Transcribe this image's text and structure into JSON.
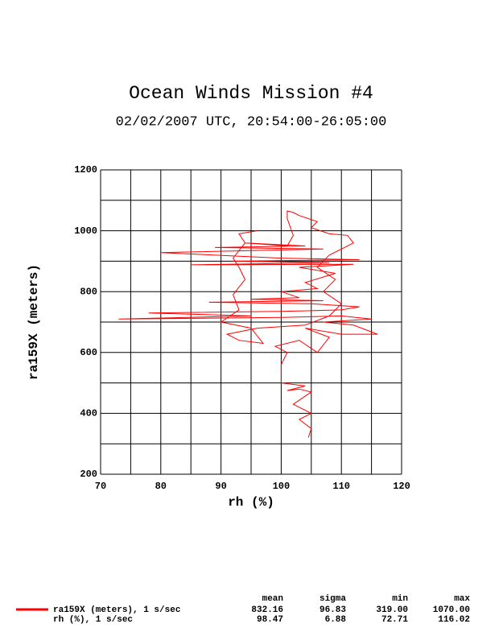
{
  "chart_data": {
    "type": "line",
    "title": "Ocean Winds Mission #4",
    "subtitle": "02/02/2007  UTC, 20:54:00-26:05:00",
    "x_label": "rh (%)",
    "y_label": "ra159X (meters)",
    "xlim": [
      70,
      120
    ],
    "ylim": [
      200,
      1200
    ],
    "xticks": [
      70,
      80,
      90,
      100,
      110,
      120
    ],
    "yticks": [
      200,
      400,
      600,
      800,
      1000,
      1200
    ],
    "x_minor_grid": [
      75,
      85,
      95,
      105,
      115
    ],
    "y_minor_grid": [
      300,
      500,
      700,
      900,
      1100
    ],
    "grid": true,
    "series": [
      {
        "name": "ra159X (meters), 1 s/sec",
        "color": "#ff0000",
        "x": [
          104.5,
          105,
          103,
          105,
          102,
          105,
          103,
          101,
          104,
          100,
          100,
          101,
          99,
          103,
          106,
          108,
          104,
          110,
          116,
          112,
          107,
          115,
          110,
          100,
          73,
          95,
          78,
          100,
          110,
          113,
          105,
          88,
          107,
          95,
          103,
          100,
          106,
          104,
          109,
          103,
          112,
          85,
          108,
          92,
          113,
          100,
          80,
          95,
          107,
          89,
          104,
          94,
          101,
          102,
          101,
          101,
          102,
          103,
          106,
          105,
          108,
          111,
          112,
          110,
          108,
          106,
          109,
          107,
          110,
          108,
          104,
          96,
          91,
          93,
          97,
          95,
          90,
          93,
          92,
          94,
          93,
          92,
          94,
          93,
          96
        ],
        "values": [
          320,
          350,
          380,
          400,
          430,
          470,
          480,
          475,
          490,
          500,
          560,
          600,
          620,
          640,
          600,
          650,
          680,
          660,
          660,
          690,
          700,
          710,
          720,
          715,
          710,
          720,
          730,
          735,
          740,
          750,
          760,
          765,
          770,
          775,
          780,
          800,
          810,
          830,
          860,
          880,
          890,
          888,
          895,
          900,
          905,
          910,
          928,
          935,
          940,
          945,
          950,
          960,
          950,
          985,
          1040,
          1065,
          1060,
          1050,
          1030,
          1010,
          990,
          985,
          960,
          940,
          920,
          880,
          840,
          800,
          760,
          720,
          690,
          680,
          660,
          640,
          630,
          680,
          700,
          740,
          790,
          840,
          880,
          910,
          960,
          990,
          1000
        ]
      }
    ],
    "stats": {
      "columns": [
        "mean",
        "sigma",
        "min",
        "max"
      ],
      "rows": [
        {
          "values": [
            "832.16",
            "96.83",
            "319.00",
            "1070.00"
          ]
        },
        {
          "label": "rh (%), 1 s/sec",
          "values": [
            "98.47",
            "6.88",
            "72.71",
            "116.02"
          ]
        }
      ]
    }
  }
}
